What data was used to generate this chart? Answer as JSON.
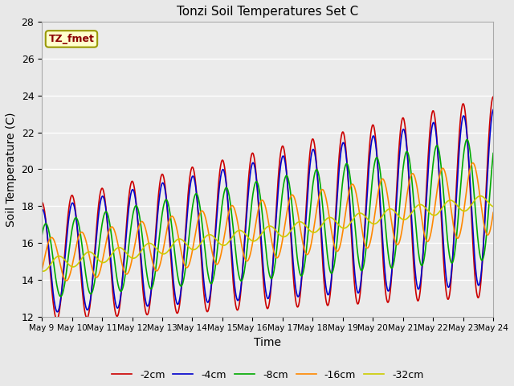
{
  "title": "Tonzi Soil Temperatures Set C",
  "xlabel": "Time",
  "ylabel": "Soil Temperature (C)",
  "ylim": [
    12,
    28
  ],
  "annotation_text": "TZ_fmet",
  "annotation_color": "#8B0000",
  "annotation_bg": "#FFFFCC",
  "annotation_border": "#999900",
  "series": [
    {
      "label": "-2cm",
      "color": "#CC0000",
      "lw": 1.2
    },
    {
      "label": "-4cm",
      "color": "#0000CC",
      "lw": 1.2
    },
    {
      "label": "-8cm",
      "color": "#00AA00",
      "lw": 1.2
    },
    {
      "label": "-16cm",
      "color": "#FF8800",
      "lw": 1.2
    },
    {
      "label": "-32cm",
      "color": "#CCCC00",
      "lw": 1.2
    }
  ],
  "xtick_labels": [
    "May 9",
    "May 10",
    "May 11",
    "May 12",
    "May 13",
    "May 14",
    "May 15",
    "May 16",
    "May 17",
    "May 18",
    "May 19",
    "May 20",
    "May 21",
    "May 22",
    "May 23",
    "May 24"
  ],
  "background_color": "#E8E8E8",
  "plot_bg": "#EBEBEB"
}
